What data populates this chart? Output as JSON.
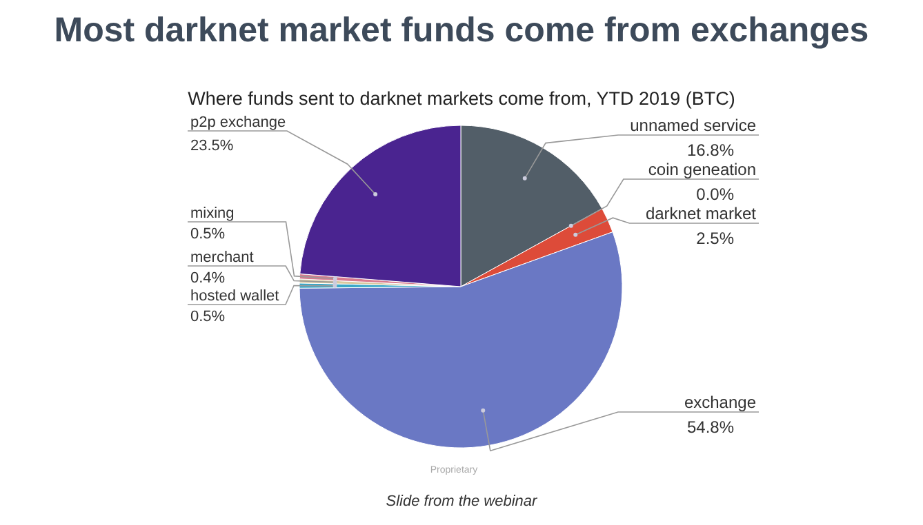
{
  "chart_data": {
    "type": "pie",
    "title": "Most darknet market funds come from exchanges",
    "subtitle": "Where funds sent to darknet markets come from, YTD 2019 (BTC)",
    "categories": [
      "unnamed service",
      "coin geneation",
      "darknet market",
      "exchange",
      "hosted wallet",
      "merchant",
      "mixing",
      "p2p exchange"
    ],
    "values": [
      16.8,
      0.0,
      2.5,
      54.8,
      0.5,
      0.4,
      0.5,
      23.5
    ],
    "value_labels": [
      "16.8%",
      "0.0%",
      "2.5%",
      "54.8%",
      "0.5%",
      "0.4%",
      "0.5%",
      "23.5%"
    ],
    "colors": [
      "#525e68",
      "#f2a93b",
      "#dd4b39",
      "#6a78c4",
      "#3aa8c8",
      "#d8c9a0",
      "#d87a8e",
      "#4a2490"
    ],
    "annotations": [
      "Proprietary",
      "Slide from the webinar"
    ]
  }
}
